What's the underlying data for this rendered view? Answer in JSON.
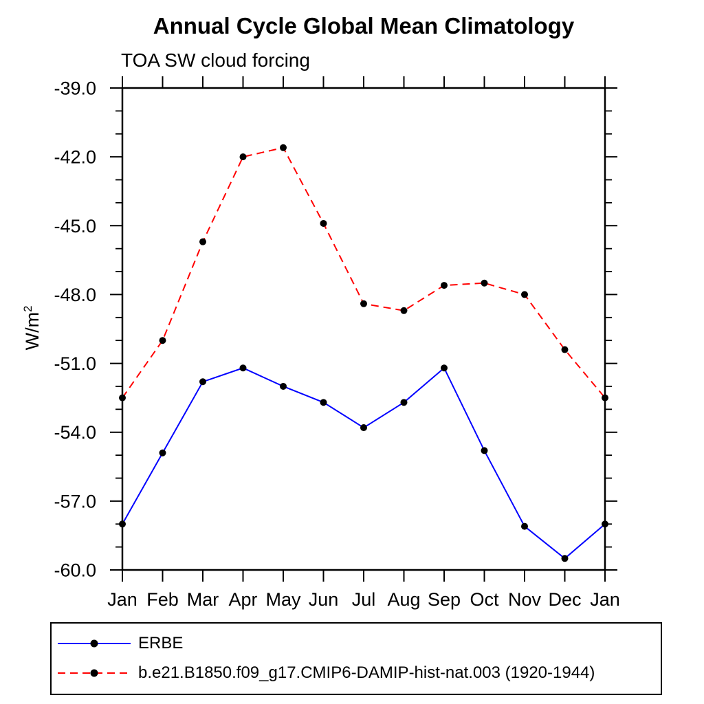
{
  "chart_data": {
    "type": "line",
    "title": "Annual Cycle Global Mean Climatology",
    "subtitle": "TOA SW cloud forcing",
    "ylabel": "W/m",
    "ylabel_superscript": "2",
    "xlabel": "",
    "categories": [
      "Jan",
      "Feb",
      "Mar",
      "Apr",
      "May",
      "Jun",
      "Jul",
      "Aug",
      "Sep",
      "Oct",
      "Nov",
      "Dec",
      "Jan"
    ],
    "ylim": [
      -60.0,
      -39.0
    ],
    "ytick_major_step": 3.0,
    "ytick_minor_step": 1.0,
    "ytick_labels": [
      "-39.0",
      "-42.0",
      "-45.0",
      "-48.0",
      "-51.0",
      "-54.0",
      "-57.0",
      "-60.0"
    ],
    "grid": false,
    "legend_position": "boxed-below-axis",
    "marker": "filled-circle",
    "marker_color": "#000000",
    "axis_color": "#000000",
    "series": [
      {
        "name": "ERBE",
        "color": "#0000ff",
        "line_style": "solid",
        "values": [
          -58.0,
          -54.9,
          -51.8,
          -51.2,
          -52.0,
          -52.7,
          -53.8,
          -52.7,
          -51.2,
          -54.8,
          -58.1,
          -59.5,
          -58.0
        ]
      },
      {
        "name": "b.e21.B1850.f09_g17.CMIP6-DAMIP-hist-nat.003 (1920-1944)",
        "color": "#ff0000",
        "line_style": "dashed",
        "values": [
          -52.5,
          -50.0,
          -45.7,
          -42.0,
          -41.6,
          -44.9,
          -48.4,
          -48.7,
          -47.6,
          -47.5,
          -48.0,
          -50.4,
          -52.5
        ]
      }
    ]
  }
}
